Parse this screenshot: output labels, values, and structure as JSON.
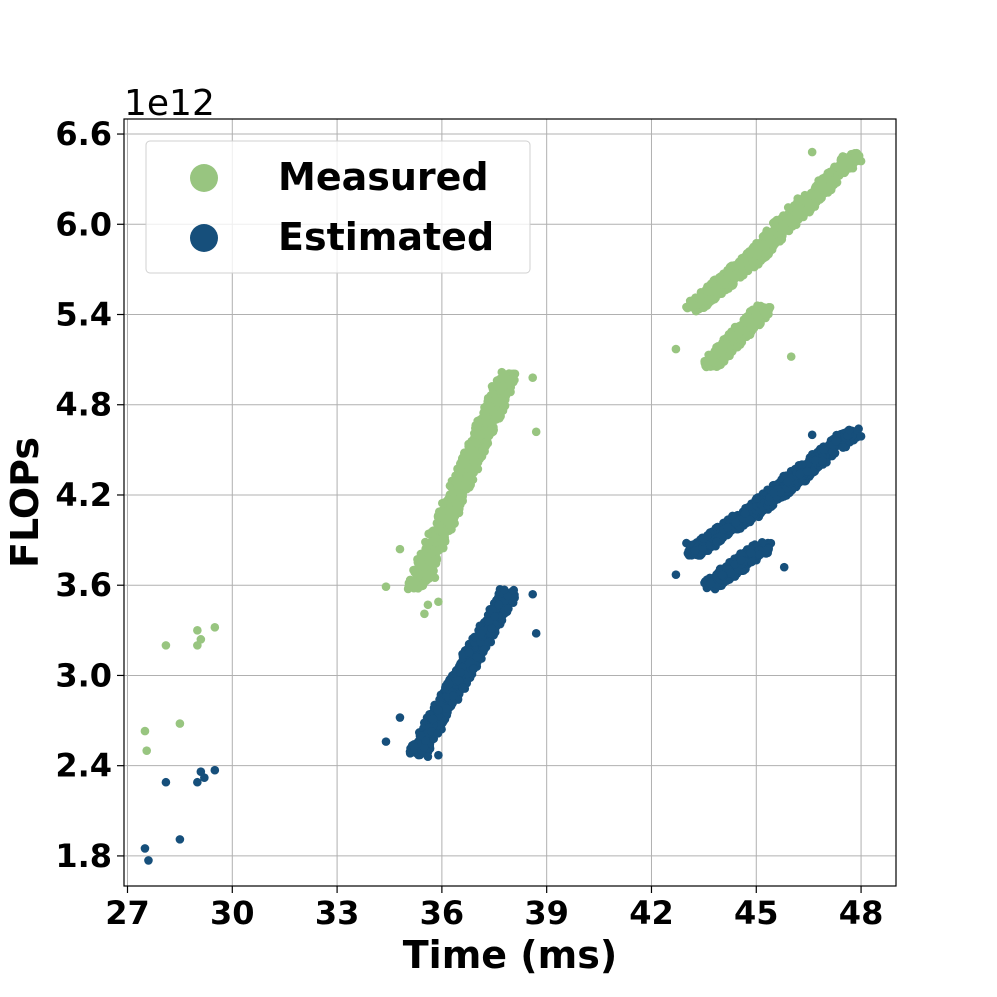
{
  "chart_data": {
    "type": "scatter",
    "title": "",
    "xlabel": "Time (ms)",
    "ylabel": "FLOPs",
    "y_offset_label": "1e12",
    "xlim": [
      26.9,
      49.0
    ],
    "ylim": [
      1.6,
      6.7
    ],
    "x_ticks": [
      27,
      30,
      33,
      36,
      39,
      42,
      45,
      48
    ],
    "x_tick_labels": [
      "27",
      "30",
      "33",
      "36",
      "39",
      "42",
      "45",
      "48"
    ],
    "y_ticks": [
      1.8,
      2.4,
      3.0,
      3.6,
      4.2,
      4.8,
      5.4,
      6.0,
      6.6
    ],
    "y_tick_labels": [
      "1.8",
      "2.4",
      "3.0",
      "3.6",
      "4.2",
      "4.8",
      "5.4",
      "6.0",
      "6.6"
    ],
    "grid": true,
    "legend_position": "upper-left",
    "series": [
      {
        "name": "Measured",
        "color": "#98c580",
        "points": [
          [
            27.5,
            2.63
          ],
          [
            27.55,
            2.5
          ],
          [
            28.1,
            3.2
          ],
          [
            28.5,
            2.68
          ],
          [
            29.0,
            3.2
          ],
          [
            29.0,
            3.3
          ],
          [
            29.1,
            3.24
          ],
          [
            29.5,
            3.32
          ],
          [
            34.4,
            3.59
          ],
          [
            34.8,
            3.84
          ],
          [
            35.2,
            3.58
          ],
          [
            35.5,
            3.41
          ],
          [
            35.6,
            3.47
          ],
          [
            35.9,
            3.49
          ],
          [
            35.4,
            3.75
          ],
          [
            35.8,
            3.65
          ],
          [
            38.7,
            4.62
          ],
          [
            38.6,
            4.98
          ],
          [
            42.7,
            5.17
          ],
          [
            43.0,
            5.45
          ],
          [
            43.4,
            5.5
          ],
          [
            44.9,
            5.75
          ],
          [
            46.0,
            5.12
          ],
          [
            47.9,
            6.46
          ],
          [
            46.6,
            6.48
          ],
          [
            48.0,
            6.42
          ]
        ],
        "clusters": [
          {
            "x_start": 35.3,
            "x_end": 37.9,
            "y_start": 3.6,
            "y_end": 5.0,
            "spread_x": 0.55,
            "count": 700
          },
          {
            "x_start": 43.2,
            "x_end": 45.3,
            "y_start": 5.45,
            "y_end": 5.85,
            "spread_x": 0.45,
            "count": 550
          },
          {
            "x_start": 43.7,
            "x_end": 45.2,
            "y_start": 5.07,
            "y_end": 5.43,
            "spread_x": 0.45,
            "count": 450
          },
          {
            "x_start": 45.0,
            "x_end": 46.4,
            "y_start": 5.8,
            "y_end": 6.15,
            "spread_x": 0.5,
            "count": 300
          },
          {
            "x_start": 46.3,
            "x_end": 47.8,
            "y_start": 6.1,
            "y_end": 6.45,
            "spread_x": 0.45,
            "count": 250
          }
        ]
      },
      {
        "name": "Estimated",
        "color": "#164f7b",
        "points": [
          [
            27.5,
            1.85
          ],
          [
            27.6,
            1.77
          ],
          [
            28.1,
            2.29
          ],
          [
            28.5,
            1.91
          ],
          [
            29.0,
            2.29
          ],
          [
            29.1,
            2.36
          ],
          [
            29.2,
            2.32
          ],
          [
            29.5,
            2.37
          ],
          [
            34.4,
            2.56
          ],
          [
            34.8,
            2.72
          ],
          [
            35.2,
            2.53
          ],
          [
            35.6,
            2.46
          ],
          [
            35.9,
            2.47
          ],
          [
            38.7,
            3.28
          ],
          [
            38.6,
            3.54
          ],
          [
            42.7,
            3.67
          ],
          [
            43.0,
            3.88
          ],
          [
            43.5,
            3.91
          ],
          [
            45.8,
            3.72
          ],
          [
            47.9,
            4.63
          ],
          [
            48.0,
            4.59
          ],
          [
            46.6,
            4.6
          ]
        ],
        "clusters": [
          {
            "x_start": 35.3,
            "x_end": 37.9,
            "y_start": 2.48,
            "y_end": 3.55,
            "spread_x": 0.5,
            "count": 700
          },
          {
            "x_start": 43.2,
            "x_end": 45.3,
            "y_start": 3.82,
            "y_end": 4.15,
            "spread_x": 0.45,
            "count": 550
          },
          {
            "x_start": 43.7,
            "x_end": 45.2,
            "y_start": 3.6,
            "y_end": 3.86,
            "spread_x": 0.45,
            "count": 450
          },
          {
            "x_start": 45.2,
            "x_end": 46.5,
            "y_start": 4.15,
            "y_end": 4.38,
            "spread_x": 0.5,
            "count": 300
          },
          {
            "x_start": 46.3,
            "x_end": 47.8,
            "y_start": 4.35,
            "y_end": 4.62,
            "spread_x": 0.45,
            "count": 250
          }
        ]
      }
    ]
  }
}
